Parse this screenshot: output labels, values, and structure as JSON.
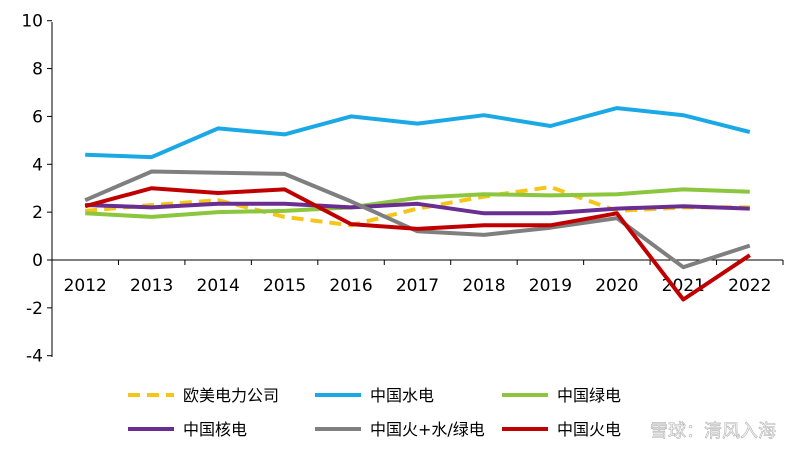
{
  "chart_data": {
    "type": "line",
    "title": "",
    "xlabel": "",
    "ylabel": "",
    "x": [
      2012,
      2013,
      2014,
      2015,
      2016,
      2017,
      2018,
      2019,
      2020,
      2021,
      2022
    ],
    "x_tick_labels": [
      "2012",
      "2013",
      "2014",
      "2015",
      "2016",
      "2017",
      "2018",
      "2019",
      "2020",
      "2021",
      "2022"
    ],
    "ylim": [
      -4,
      10
    ],
    "y_ticks": [
      10,
      8,
      6,
      4,
      2,
      0,
      -2,
      -4
    ],
    "y_tick_labels": [
      "10",
      "8",
      "6",
      "4",
      "2",
      "0",
      "-2",
      "-4"
    ],
    "grid": false,
    "legend_position": "bottom",
    "series": [
      {
        "name": "欧美电力公司",
        "color": "#f5c518",
        "dashed": true,
        "values": [
          2.05,
          2.3,
          2.5,
          1.8,
          1.45,
          2.15,
          2.65,
          3.05,
          2.05,
          2.2,
          2.2
        ]
      },
      {
        "name": "中国水电",
        "color": "#1ba9e6",
        "dashed": false,
        "values": [
          4.4,
          4.3,
          5.5,
          5.25,
          6.0,
          5.7,
          6.05,
          5.6,
          6.35,
          6.05,
          5.35
        ]
      },
      {
        "name": "中国绿电",
        "color": "#8cc63f",
        "dashed": false,
        "values": [
          1.95,
          1.8,
          2.0,
          2.05,
          2.2,
          2.6,
          2.75,
          2.7,
          2.75,
          2.95,
          2.85
        ]
      },
      {
        "name": "中国核电",
        "color": "#6a2d91",
        "dashed": false,
        "values": [
          2.3,
          2.2,
          2.35,
          2.35,
          2.2,
          2.35,
          1.95,
          1.95,
          2.15,
          2.25,
          2.15
        ]
      },
      {
        "name": "中国火+水/绿电",
        "color": "#7f7f7f",
        "dashed": false,
        "values": [
          2.5,
          3.7,
          3.65,
          3.6,
          2.45,
          1.2,
          1.05,
          1.35,
          1.75,
          -0.3,
          0.6
        ]
      },
      {
        "name": "中国火电",
        "color": "#c00000",
        "dashed": false,
        "values": [
          2.25,
          3.0,
          2.8,
          2.95,
          1.5,
          1.3,
          1.45,
          1.45,
          1.95,
          -1.65,
          0.2
        ]
      }
    ]
  },
  "watermark": {
    "text": "雪球：清风入海"
  }
}
